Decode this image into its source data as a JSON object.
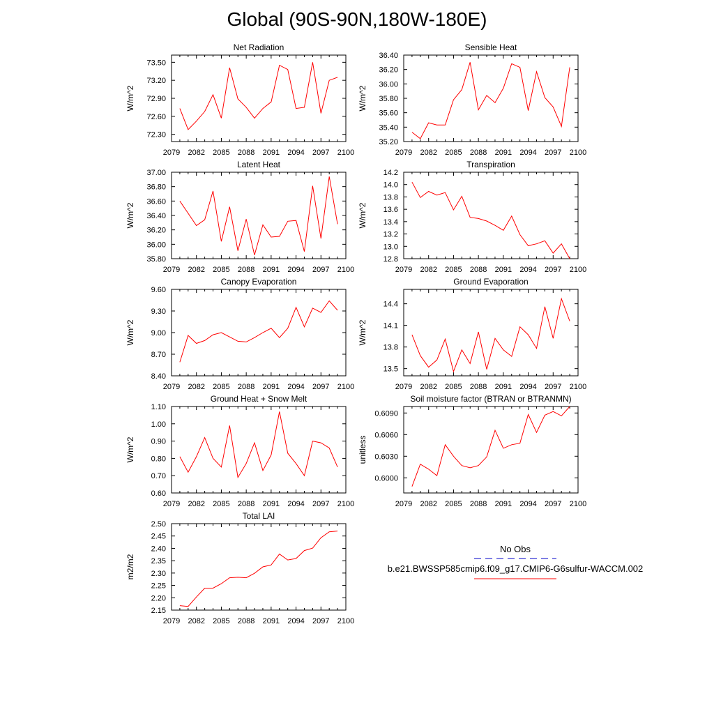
{
  "figure": {
    "title": "Global (90S-90N,180W-180E)",
    "line_color": "#ff0000",
    "obs_color": "#0000c8",
    "legend": {
      "obs_label": "No Obs",
      "case_label": "b.e21.BWSSP585cmip6.f09_g17.CMIP6-G6sulfur-WACCM.002"
    }
  },
  "chart_data": [
    {
      "type": "line",
      "title": "Net Radiation",
      "ylabel": "W/m^2",
      "xlim": [
        2079,
        2100
      ],
      "ylim": [
        72.18,
        73.62
      ],
      "xticks": [
        "2079",
        "2082",
        "2085",
        "2088",
        "2091",
        "2094",
        "2097",
        "2100"
      ],
      "yticks": [
        "72.30",
        "72.60",
        "72.90",
        "73.20",
        "73.50"
      ],
      "x": [
        2080,
        2081,
        2082,
        2083,
        2084,
        2085,
        2086,
        2087,
        2088,
        2089,
        2090,
        2091,
        2092,
        2093,
        2094,
        2095,
        2096,
        2097,
        2098,
        2099
      ],
      "series": [
        {
          "values": [
            72.73,
            72.38,
            72.52,
            72.68,
            72.96,
            72.57,
            73.41,
            72.89,
            72.75,
            72.57,
            72.73,
            72.84,
            73.45,
            73.38,
            72.73,
            72.75,
            73.5,
            72.65,
            73.2,
            73.25
          ]
        }
      ]
    },
    {
      "type": "line",
      "title": "Sensible Heat",
      "ylabel": "W/m^2",
      "xlim": [
        2079,
        2100
      ],
      "ylim": [
        35.2,
        36.4
      ],
      "xticks": [
        "2079",
        "2082",
        "2085",
        "2088",
        "2091",
        "2094",
        "2097",
        "2100"
      ],
      "yticks": [
        "35.20",
        "35.40",
        "35.60",
        "35.80",
        "36.00",
        "36.20",
        "36.40"
      ],
      "x": [
        2080,
        2081,
        2082,
        2083,
        2084,
        2085,
        2086,
        2087,
        2088,
        2089,
        2090,
        2091,
        2092,
        2093,
        2094,
        2095,
        2096,
        2097,
        2098,
        2099
      ],
      "series": [
        {
          "values": [
            35.33,
            35.24,
            35.46,
            35.43,
            35.43,
            35.78,
            35.92,
            36.3,
            35.64,
            35.84,
            35.74,
            35.94,
            36.28,
            36.23,
            35.63,
            36.17,
            35.81,
            35.68,
            35.41,
            36.23
          ]
        }
      ]
    },
    {
      "type": "line",
      "title": "Latent Heat",
      "ylabel": "W/m^2",
      "xlim": [
        2079,
        2100
      ],
      "ylim": [
        35.8,
        37.0
      ],
      "xticks": [
        "2079",
        "2082",
        "2085",
        "2088",
        "2091",
        "2094",
        "2097",
        "2100"
      ],
      "yticks": [
        "35.80",
        "36.00",
        "36.20",
        "36.40",
        "36.60",
        "36.80",
        "37.00"
      ],
      "x": [
        2080,
        2081,
        2082,
        2083,
        2084,
        2085,
        2086,
        2087,
        2088,
        2089,
        2090,
        2091,
        2092,
        2093,
        2094,
        2095,
        2096,
        2097,
        2098,
        2099
      ],
      "series": [
        {
          "values": [
            36.6,
            36.43,
            36.26,
            36.34,
            36.74,
            36.04,
            36.52,
            35.91,
            36.35,
            35.85,
            36.27,
            36.1,
            36.11,
            36.32,
            36.33,
            35.9,
            36.81,
            36.08,
            36.94,
            36.28
          ]
        }
      ]
    },
    {
      "type": "line",
      "title": "Transpiration",
      "ylabel": "W/m^2",
      "xlim": [
        2079,
        2100
      ],
      "ylim": [
        12.8,
        14.2
      ],
      "xticks": [
        "2079",
        "2082",
        "2085",
        "2088",
        "2091",
        "2094",
        "2097",
        "2100"
      ],
      "yticks": [
        "12.8",
        "13.0",
        "13.2",
        "13.4",
        "13.6",
        "13.8",
        "14.0",
        "14.2"
      ],
      "x": [
        2080,
        2081,
        2082,
        2083,
        2084,
        2085,
        2086,
        2087,
        2088,
        2089,
        2090,
        2091,
        2092,
        2093,
        2094,
        2095,
        2096,
        2097,
        2098,
        2099
      ],
      "series": [
        {
          "values": [
            14.04,
            13.79,
            13.89,
            13.83,
            13.87,
            13.59,
            13.81,
            13.47,
            13.45,
            13.41,
            13.34,
            13.26,
            13.49,
            13.19,
            13.01,
            13.04,
            13.09,
            12.89,
            13.04,
            12.8
          ]
        }
      ]
    },
    {
      "type": "line",
      "title": "Canopy Evaporation",
      "ylabel": "W/m^2",
      "xlim": [
        2079,
        2100
      ],
      "ylim": [
        8.4,
        9.6
      ],
      "xticks": [
        "2079",
        "2082",
        "2085",
        "2088",
        "2091",
        "2094",
        "2097",
        "2100"
      ],
      "yticks": [
        "8.40",
        "8.70",
        "9.00",
        "9.30",
        "9.60"
      ],
      "x": [
        2080,
        2081,
        2082,
        2083,
        2084,
        2085,
        2086,
        2087,
        2088,
        2089,
        2090,
        2091,
        2092,
        2093,
        2094,
        2095,
        2096,
        2097,
        2098,
        2099
      ],
      "series": [
        {
          "values": [
            8.59,
            8.96,
            8.85,
            8.89,
            8.97,
            9.0,
            8.94,
            8.88,
            8.87,
            8.93,
            9.0,
            9.06,
            8.93,
            9.06,
            9.35,
            9.08,
            9.34,
            9.28,
            9.44,
            9.31
          ]
        }
      ]
    },
    {
      "type": "line",
      "title": "Ground Evaporation",
      "ylabel": "W/m^2",
      "xlim": [
        2079,
        2100
      ],
      "ylim": [
        13.4,
        14.6
      ],
      "xticks": [
        "2079",
        "2082",
        "2085",
        "2088",
        "2091",
        "2094",
        "2097",
        "2100"
      ],
      "yticks": [
        "13.5",
        "13.8",
        "14.1",
        "14.4"
      ],
      "x": [
        2080,
        2081,
        2082,
        2083,
        2084,
        2085,
        2086,
        2087,
        2088,
        2089,
        2090,
        2091,
        2092,
        2093,
        2094,
        2095,
        2096,
        2097,
        2098,
        2099
      ],
      "series": [
        {
          "values": [
            13.97,
            13.68,
            13.52,
            13.62,
            13.91,
            13.46,
            13.76,
            13.57,
            14.01,
            13.49,
            13.92,
            13.76,
            13.67,
            14.08,
            13.97,
            13.78,
            14.36,
            13.92,
            14.47,
            14.16
          ]
        }
      ]
    },
    {
      "type": "line",
      "title": "Ground Heat + Snow Melt",
      "ylabel": "W/m^2",
      "xlim": [
        2079,
        2100
      ],
      "ylim": [
        0.6,
        1.1
      ],
      "xticks": [
        "2079",
        "2082",
        "2085",
        "2088",
        "2091",
        "2094",
        "2097",
        "2100"
      ],
      "yticks": [
        "0.60",
        "0.70",
        "0.80",
        "0.90",
        "1.00",
        "1.10"
      ],
      "x": [
        2080,
        2081,
        2082,
        2083,
        2084,
        2085,
        2086,
        2087,
        2088,
        2089,
        2090,
        2091,
        2092,
        2093,
        2094,
        2095,
        2096,
        2097,
        2098,
        2099
      ],
      "series": [
        {
          "values": [
            0.81,
            0.72,
            0.81,
            0.92,
            0.8,
            0.75,
            0.99,
            0.69,
            0.77,
            0.89,
            0.73,
            0.82,
            1.07,
            0.83,
            0.77,
            0.7,
            0.9,
            0.89,
            0.86,
            0.75
          ]
        }
      ]
    },
    {
      "type": "line",
      "title": "Soil moisture factor (BTRAN or BTRANMN)",
      "ylabel": "unitless",
      "xlim": [
        2079,
        2100
      ],
      "ylim": [
        0.5979,
        0.6099
      ],
      "xticks": [
        "2079",
        "2082",
        "2085",
        "2088",
        "2091",
        "2094",
        "2097",
        "2100"
      ],
      "yticks": [
        "0.6000",
        "0.6030",
        "0.6060",
        "0.6090"
      ],
      "x": [
        2080,
        2081,
        2082,
        2083,
        2084,
        2085,
        2086,
        2087,
        2088,
        2089,
        2090,
        2091,
        2092,
        2093,
        2094,
        2095,
        2096,
        2097,
        2098,
        2099
      ],
      "series": [
        {
          "values": [
            0.5988,
            0.6019,
            0.6012,
            0.6003,
            0.6046,
            0.603,
            0.6017,
            0.6014,
            0.6017,
            0.6029,
            0.6066,
            0.6041,
            0.6046,
            0.6048,
            0.6088,
            0.6063,
            0.6087,
            0.6092,
            0.6086,
            0.6099
          ]
        }
      ]
    },
    {
      "type": "line",
      "title": "Total LAI",
      "ylabel": "m2/m2",
      "xlim": [
        2079,
        2100
      ],
      "ylim": [
        2.15,
        2.5
      ],
      "xticks": [
        "2079",
        "2082",
        "2085",
        "2088",
        "2091",
        "2094",
        "2097",
        "2100"
      ],
      "yticks": [
        "2.15",
        "2.20",
        "2.25",
        "2.30",
        "2.35",
        "2.40",
        "2.45",
        "2.50"
      ],
      "x": [
        2080,
        2081,
        2082,
        2083,
        2084,
        2085,
        2086,
        2087,
        2088,
        2089,
        2090,
        2091,
        2092,
        2093,
        2094,
        2095,
        2096,
        2097,
        2098,
        2099
      ],
      "series": [
        {
          "values": [
            2.168,
            2.165,
            2.203,
            2.239,
            2.239,
            2.257,
            2.281,
            2.283,
            2.281,
            2.299,
            2.325,
            2.333,
            2.377,
            2.353,
            2.359,
            2.391,
            2.401,
            2.443,
            2.467,
            2.47
          ]
        }
      ]
    }
  ]
}
